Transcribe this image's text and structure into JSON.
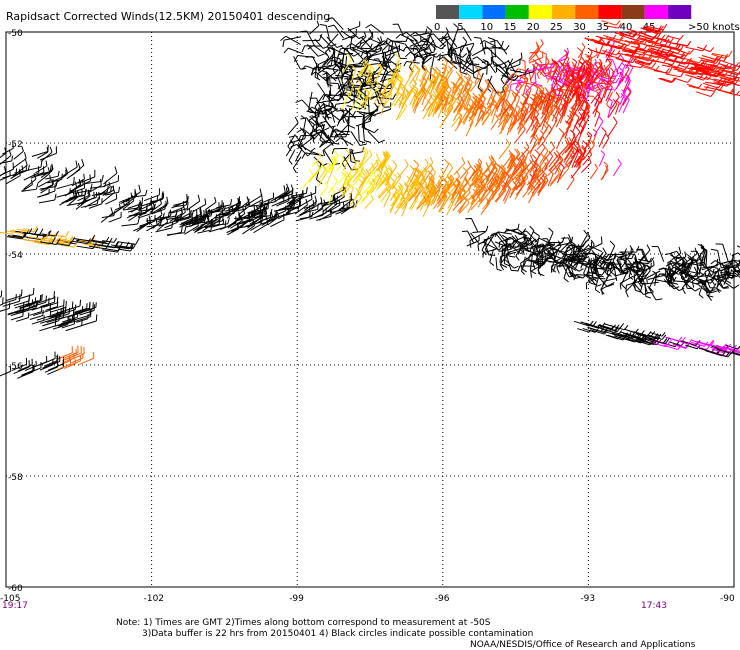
{
  "title": "Rapidsact Corrected Winds(12.5KM) 20150401 descending",
  "colorbar": {
    "segments": [
      {
        "label": "0",
        "color": "#555555"
      },
      {
        "label": "5",
        "color": "#00d8ff"
      },
      {
        "label": "10",
        "color": "#0070ff"
      },
      {
        "label": "15",
        "color": "#00bf00"
      },
      {
        "label": "20",
        "color": "#ffff00"
      },
      {
        "label": "25",
        "color": "#ffb000"
      },
      {
        "label": "30",
        "color": "#ff6000"
      },
      {
        "label": "35",
        "color": "#ff0000"
      },
      {
        "label": "40",
        "color": "#8b3a1a"
      },
      {
        "label": "45",
        "color": "#ff00ff"
      },
      {
        "label": "",
        "color": "#7000c0"
      }
    ],
    "end_label": ">50 knots"
  },
  "map": {
    "lat_range": [
      -60,
      -50
    ],
    "lon_range": [
      -105,
      -90
    ],
    "lat_ticks": [
      "-50",
      "-52",
      "-54",
      "-56",
      "-58",
      "-60"
    ],
    "lon_ticks": [
      "-105",
      "-102",
      "-99",
      "-96",
      "-93",
      "-90"
    ],
    "time_left": "19:17",
    "time_right": "17:43"
  },
  "notes": {
    "line1": "Note: 1) Times are GMT 2)Times along bottom correspond to measurement at -50S",
    "line2": "3)Data buffer is 22 hrs from 20150401 4) Black circles indicate possible contamination",
    "line3": "NOAA/NESDIS/Office of Research and Applications"
  }
}
